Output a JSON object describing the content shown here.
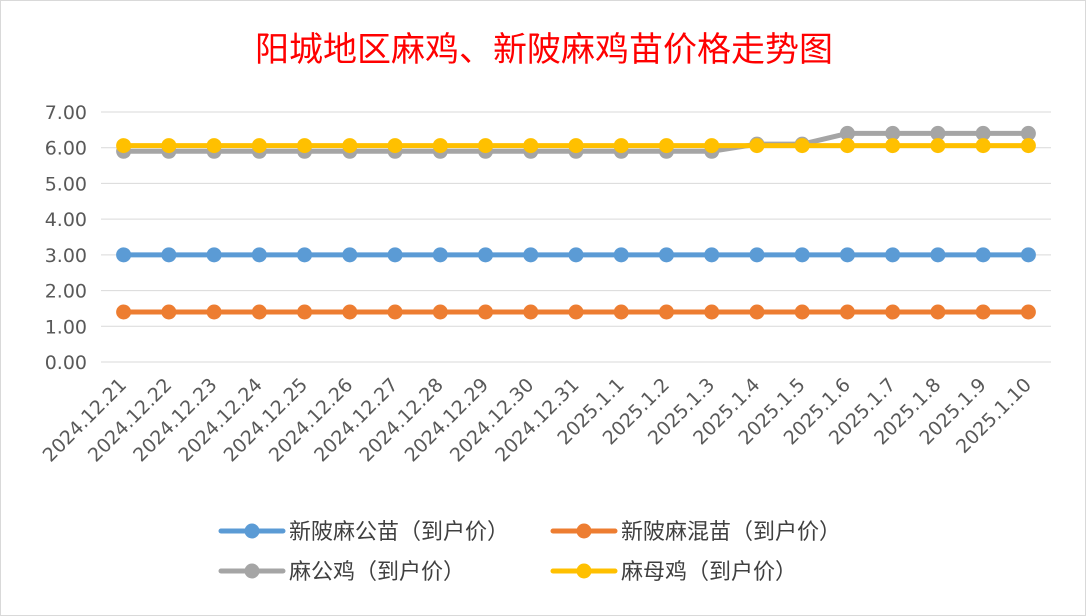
{
  "chart_data": {
    "type": "line",
    "title": "阳城地区麻鸡、新陂麻鸡苗价格走势图",
    "xlabel": "",
    "ylabel": "",
    "ylim": [
      0,
      7
    ],
    "y_ticks": [
      "0.00",
      "1.00",
      "2.00",
      "3.00",
      "4.00",
      "5.00",
      "6.00",
      "7.00"
    ],
    "grid": true,
    "legend_position": "bottom",
    "categories": [
      "2024.12.21",
      "2024.12.22",
      "2024.12.23",
      "2024.12.24",
      "2024.12.25",
      "2024.12.26",
      "2024.12.27",
      "2024.12.28",
      "2024.12.29",
      "2024.12.30",
      "2024.12.31",
      "2025.1.1",
      "2025.1.2",
      "2025.1.3",
      "2025.1.4",
      "2025.1.5",
      "2025.1.6",
      "2025.1.7",
      "2025.1.8",
      "2025.1.9",
      "2025.1.10"
    ],
    "series": [
      {
        "name": "新陂麻公苗（到户价）",
        "color": "#5b9bd5",
        "values": [
          3.0,
          3.0,
          3.0,
          3.0,
          3.0,
          3.0,
          3.0,
          3.0,
          3.0,
          3.0,
          3.0,
          3.0,
          3.0,
          3.0,
          3.0,
          3.0,
          3.0,
          3.0,
          3.0,
          3.0,
          3.0
        ]
      },
      {
        "name": "新陂麻混苗（到户价）",
        "color": "#ed7d31",
        "values": [
          1.4,
          1.4,
          1.4,
          1.4,
          1.4,
          1.4,
          1.4,
          1.4,
          1.4,
          1.4,
          1.4,
          1.4,
          1.4,
          1.4,
          1.4,
          1.4,
          1.4,
          1.4,
          1.4,
          1.4,
          1.4
        ]
      },
      {
        "name": "麻公鸡（到户价）",
        "color": "#a5a5a5",
        "values": [
          5.9,
          5.9,
          5.9,
          5.9,
          5.9,
          5.9,
          5.9,
          5.9,
          5.9,
          5.9,
          5.9,
          5.9,
          5.9,
          5.9,
          6.1,
          6.1,
          6.4,
          6.4,
          6.4,
          6.4,
          6.4
        ]
      },
      {
        "name": "麻母鸡（到户价）",
        "color": "#ffc000",
        "values": [
          6.06,
          6.06,
          6.06,
          6.06,
          6.06,
          6.06,
          6.06,
          6.06,
          6.06,
          6.06,
          6.06,
          6.06,
          6.06,
          6.06,
          6.06,
          6.06,
          6.06,
          6.06,
          6.06,
          6.06,
          6.06
        ]
      }
    ]
  }
}
